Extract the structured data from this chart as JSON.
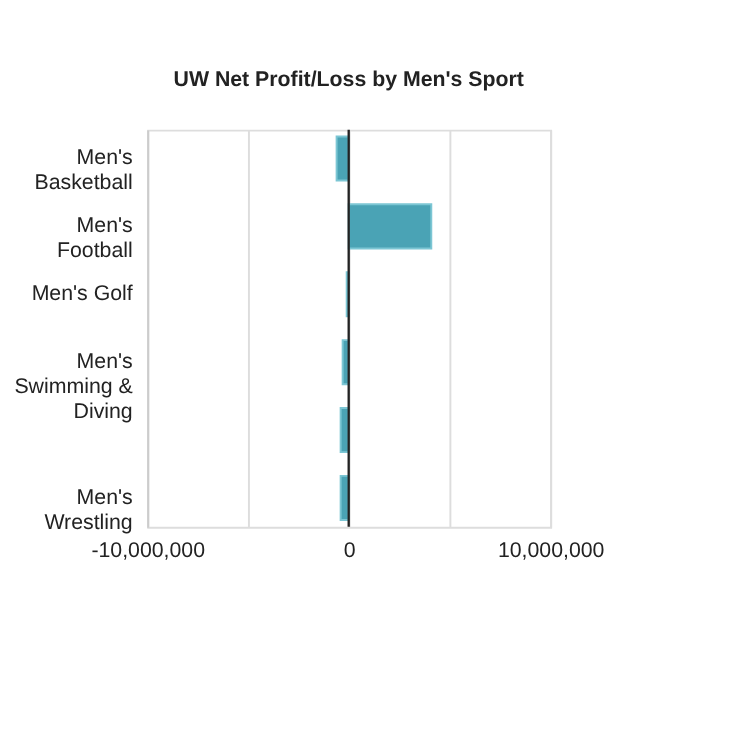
{
  "chart_data": {
    "type": "bar",
    "orientation": "horizontal",
    "title": "UW Net Profit/Loss by Men's Sport",
    "categories": [
      "Men's Basketball",
      "Men's Football",
      "Men's Golf",
      "Men's Swimming & Diving",
      null,
      "Men's Wrestling"
    ],
    "values": [
      -600000,
      4100000,
      -100000,
      -300000,
      -400000,
      -400000
    ],
    "color": "#4aa3b5",
    "xlim": [
      -10000000,
      10000000
    ],
    "xticks": [
      {
        "value": -10000000,
        "label": "-10,000,000"
      },
      {
        "value": -5000000,
        "label": null
      },
      0,
      {
        "value": 5000000,
        "label": null
      },
      {
        "value": 10000000,
        "label": "10,000,000"
      }
    ],
    "ref_lines": [
      {
        "axis": "x",
        "value": 0,
        "color": "#222222"
      }
    ],
    "grid": "x"
  }
}
